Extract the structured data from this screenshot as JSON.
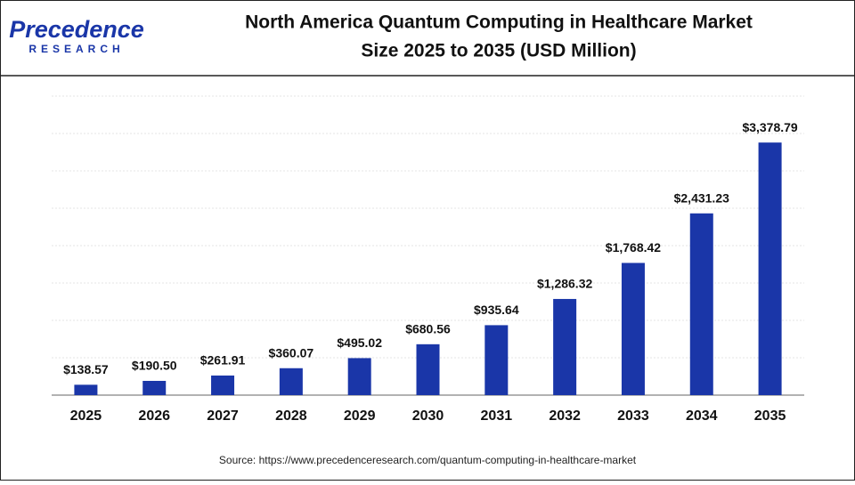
{
  "logo": {
    "name": "Precedence",
    "tagline": "RESEARCH"
  },
  "chart_data": {
    "type": "bar",
    "title": "North America Quantum Computing in Healthcare Market",
    "subtitle": "Size 2025 to 2035 (USD Million)",
    "categories": [
      "2025",
      "2026",
      "2027",
      "2028",
      "2029",
      "2030",
      "2031",
      "2032",
      "2033",
      "2034",
      "2035"
    ],
    "values": [
      138.57,
      190.5,
      261.91,
      360.07,
      495.02,
      680.56,
      935.64,
      1286.32,
      1768.42,
      2431.23,
      3378.79
    ],
    "value_labels": [
      "$138.57",
      "$190.50",
      "$261.91",
      "$360.07",
      "$495.02",
      "$680.56",
      "$935.64",
      "$1,286.32",
      "$1,768.42",
      "$2,431.23",
      "$3,378.79"
    ],
    "color": "#1a36a8",
    "ylim": [
      0,
      4000
    ],
    "yticks": [
      0,
      500,
      1000,
      1500,
      2000,
      2500,
      3000,
      3500,
      4000
    ],
    "grid": true,
    "source": "Source: https://www.precedenceresearch.com/quantum-computing-in-healthcare-market"
  }
}
